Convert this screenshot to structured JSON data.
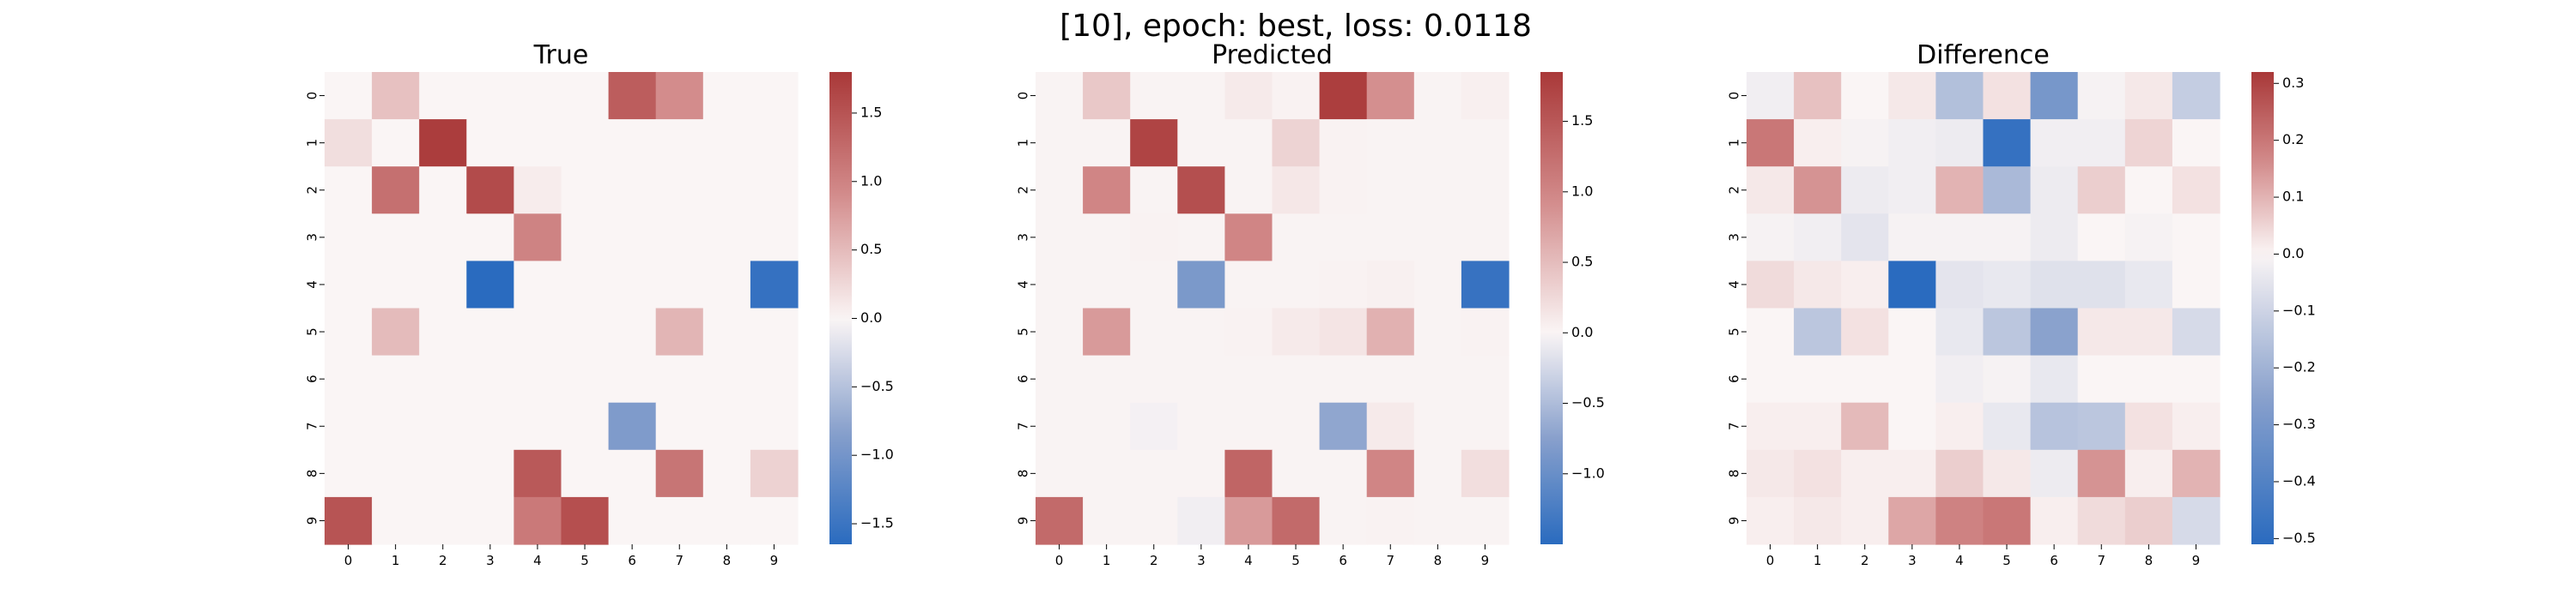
{
  "figure": {
    "suptitle": "[10], epoch: best, loss: 0.0118"
  },
  "chart_data": [
    {
      "type": "heatmap",
      "title": "True",
      "x_categories": [
        "0",
        "1",
        "2",
        "3",
        "4",
        "5",
        "6",
        "7",
        "8",
        "9"
      ],
      "y_categories": [
        "0",
        "1",
        "2",
        "3",
        "4",
        "5",
        "6",
        "7",
        "8",
        "9"
      ],
      "colormap": "vlag",
      "vmin": -1.65,
      "vmax": 1.8,
      "colorbar_ticks": [
        1.5,
        1.0,
        0.5,
        0.0,
        -0.5,
        -1.0,
        -1.5
      ],
      "colorbar_tick_labels": [
        "1.5",
        "1.0",
        "0.5",
        "0.0",
        "−0.5",
        "−1.0",
        "−1.5"
      ],
      "values": [
        [
          0,
          0.45,
          0,
          0,
          0,
          0,
          1.4,
          0.9,
          0,
          0
        ],
        [
          0.2,
          0,
          1.75,
          0,
          0,
          0,
          0,
          0,
          0,
          0
        ],
        [
          0,
          1.2,
          0,
          1.6,
          0.08,
          0,
          0,
          0,
          0,
          0
        ],
        [
          0,
          0,
          0,
          0,
          1.0,
          0,
          0,
          0,
          0,
          0
        ],
        [
          0,
          0,
          0,
          -1.65,
          0,
          0,
          0,
          0,
          0,
          -1.55
        ],
        [
          0,
          0.5,
          0,
          0,
          0,
          0,
          0,
          0.55,
          0,
          0
        ],
        [
          0,
          0,
          0,
          0,
          0,
          0,
          0,
          0,
          0,
          0
        ],
        [
          0,
          0,
          0,
          0,
          0,
          0,
          -0.9,
          0,
          0,
          0
        ],
        [
          0,
          0,
          0,
          0,
          1.45,
          0,
          0,
          1.15,
          0,
          0.3
        ],
        [
          1.5,
          0,
          0,
          0,
          1.1,
          1.55,
          0,
          0,
          0,
          0
        ]
      ]
    },
    {
      "type": "heatmap",
      "title": "Predicted",
      "x_categories": [
        "0",
        "1",
        "2",
        "3",
        "4",
        "5",
        "6",
        "7",
        "8",
        "9"
      ],
      "y_categories": [
        "0",
        "1",
        "2",
        "3",
        "4",
        "5",
        "6",
        "7",
        "8",
        "9"
      ],
      "colormap": "vlag",
      "vmin": -1.5,
      "vmax": 1.85,
      "colorbar_ticks": [
        1.5,
        1.0,
        0.5,
        0.0,
        -0.5,
        -1.0
      ],
      "colorbar_tick_labels": [
        "1.5",
        "1.0",
        "0.5",
        "0.0",
        "−0.5",
        "−1.0"
      ],
      "values": [
        [
          0.02,
          0.4,
          0.02,
          0.02,
          0.1,
          0.03,
          1.78,
          0.9,
          0.02,
          0.05
        ],
        [
          0.02,
          0.02,
          1.72,
          0.02,
          0.02,
          0.3,
          0.03,
          0.02,
          0.02,
          0.02
        ],
        [
          0.02,
          1.0,
          0.02,
          1.6,
          0.02,
          0.12,
          0.03,
          0.02,
          0.02,
          0.02
        ],
        [
          0.02,
          0.02,
          0.03,
          0.02,
          1.0,
          0.02,
          0.02,
          0.02,
          0.02,
          0.02
        ],
        [
          0.02,
          0.02,
          0.02,
          -0.85,
          0.02,
          0.02,
          0.03,
          0.04,
          0.02,
          -1.4
        ],
        [
          0.02,
          0.8,
          0.02,
          0.02,
          0.03,
          0.1,
          0.15,
          0.6,
          0.02,
          0.03
        ],
        [
          0.02,
          0.02,
          0.02,
          0.02,
          0.02,
          0.02,
          0.02,
          0.02,
          0.02,
          0.02
        ],
        [
          0.02,
          0.02,
          -0.04,
          0.02,
          0.02,
          0.02,
          -0.7,
          0.1,
          0.02,
          0.02
        ],
        [
          0.02,
          0.02,
          0.02,
          0.02,
          1.35,
          0.02,
          0.02,
          1.0,
          0.02,
          0.2
        ],
        [
          1.3,
          0.02,
          0.02,
          -0.06,
          0.8,
          1.3,
          0.02,
          0.03,
          0.02,
          0.02
        ]
      ]
    },
    {
      "type": "heatmap",
      "title": "Difference",
      "x_categories": [
        "0",
        "1",
        "2",
        "3",
        "4",
        "5",
        "6",
        "7",
        "8",
        "9"
      ],
      "y_categories": [
        "0",
        "1",
        "2",
        "3",
        "4",
        "5",
        "6",
        "7",
        "8",
        "9"
      ],
      "colormap": "vlag",
      "vmin": -0.51,
      "vmax": 0.32,
      "colorbar_ticks": [
        0.3,
        0.2,
        0.1,
        0.0,
        -0.1,
        -0.2,
        -0.3,
        -0.4,
        -0.5
      ],
      "colorbar_tick_labels": [
        "0.3",
        "0.2",
        "0.1",
        "0.0",
        "−0.1",
        "−0.2",
        "−0.3",
        "−0.4",
        "−0.5"
      ],
      "values": [
        [
          -0.02,
          0.08,
          0.0,
          0.02,
          -0.16,
          0.03,
          -0.3,
          -0.01,
          0.02,
          -0.12
        ],
        [
          0.2,
          0.01,
          -0.01,
          -0.02,
          -0.03,
          -0.48,
          -0.02,
          -0.02,
          0.05,
          0.0
        ],
        [
          0.02,
          0.15,
          -0.03,
          -0.02,
          0.1,
          -0.18,
          -0.03,
          0.06,
          0.0,
          0.03
        ],
        [
          -0.01,
          -0.02,
          -0.05,
          -0.01,
          -0.01,
          -0.01,
          -0.03,
          0.0,
          -0.01,
          0.0
        ],
        [
          0.04,
          0.02,
          0.01,
          -0.51,
          -0.05,
          -0.04,
          -0.06,
          -0.06,
          -0.04,
          0.0
        ],
        [
          0.0,
          -0.14,
          0.03,
          0.0,
          -0.04,
          -0.14,
          -0.25,
          0.02,
          0.02,
          -0.08
        ],
        [
          0.0,
          0.0,
          0.0,
          0.0,
          -0.02,
          -0.01,
          -0.04,
          0.0,
          0.0,
          0.0
        ],
        [
          0.01,
          0.01,
          0.09,
          0.0,
          0.01,
          -0.04,
          -0.15,
          -0.14,
          0.03,
          0.01
        ],
        [
          0.02,
          0.03,
          0.01,
          0.01,
          0.06,
          0.02,
          -0.03,
          0.15,
          0.01,
          0.1
        ],
        [
          0.01,
          0.02,
          0.01,
          0.12,
          0.18,
          0.2,
          0.01,
          0.04,
          0.06,
          -0.08
        ]
      ]
    }
  ]
}
